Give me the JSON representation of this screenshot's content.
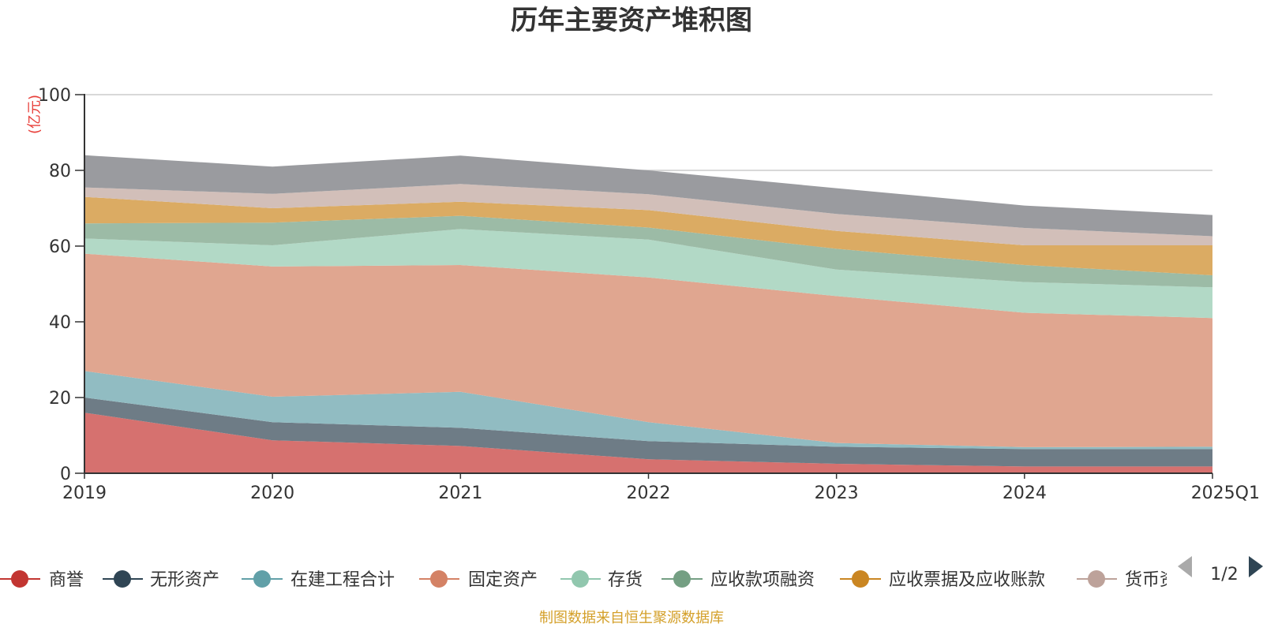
{
  "chart_data": {
    "type": "area",
    "stacked": true,
    "title": "历年主要资产堆积图",
    "y_unit_label": "(亿元)",
    "categories": [
      "2019",
      "2020",
      "2021",
      "2022",
      "2023",
      "2024",
      "2025Q1"
    ],
    "ylim": [
      0,
      100
    ],
    "yticks": [
      0,
      20,
      40,
      60,
      80,
      100
    ],
    "grid": true,
    "series": [
      {
        "name": "商誉",
        "color": "#c23531",
        "fill": "#d6716f",
        "values": [
          16,
          8.7,
          7.2,
          3.7,
          2.5,
          1.8,
          1.8
        ]
      },
      {
        "name": "无形资产",
        "color": "#2f4554",
        "fill": "#6e7c86",
        "values": [
          4,
          4.8,
          4.8,
          4.8,
          4.5,
          4.6,
          4.6
        ]
      },
      {
        "name": "在建工程合计",
        "color": "#61a0a8",
        "fill": "#91bcc2",
        "values": [
          7,
          6.7,
          9.5,
          5.0,
          1.0,
          0.5,
          0.6
        ]
      },
      {
        "name": "固定资产",
        "color": "#d48265",
        "fill": "#e0a690",
        "values": [
          31,
          34.4,
          33.5,
          38.2,
          38.8,
          35.5,
          34
        ]
      },
      {
        "name": "存货",
        "color": "#91c7ae",
        "fill": "#b2d9c6",
        "values": [
          4,
          5.6,
          9.5,
          10.0,
          7.0,
          8.1,
          8.1
        ]
      },
      {
        "name": "应收款项融资",
        "color": "#749f83",
        "fill": "#9cbba6",
        "values": [
          4,
          6.0,
          3.5,
          3.2,
          5.5,
          4.5,
          3.2
        ]
      },
      {
        "name": "应收票据及应收账款",
        "color": "#ca8622",
        "fill": "#dbab63",
        "values": [
          7,
          3.8,
          3.7,
          4.6,
          4.7,
          5.2,
          7.9
        ]
      },
      {
        "name": "货币资金",
        "color": "#bda29a",
        "fill": "#d2bfb9",
        "values": [
          2.5,
          3.8,
          4.7,
          4.2,
          4.5,
          4.6,
          2.4
        ]
      },
      {
        "name": "",
        "color": "#6e7074",
        "fill": "#9a9b9f",
        "values": [
          8.5,
          7.2,
          7.5,
          6.3,
          6.8,
          5.9,
          5.6
        ]
      }
    ],
    "legend_position": "bottom",
    "legend_visible_labels": [
      "商誉",
      "无形资产",
      "在建工程合计",
      "固定资产",
      "存货",
      "应收款项融资",
      "应收票据及应收账款",
      "货币资"
    ]
  },
  "legend": {
    "page_indicator": "1/2"
  },
  "footer": {
    "source_text": "制图数据来自恒生聚源数据库"
  }
}
